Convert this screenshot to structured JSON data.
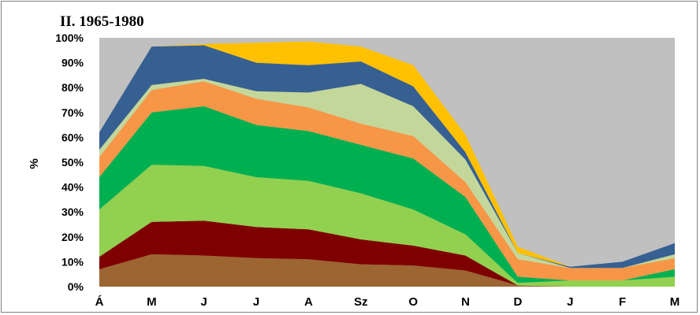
{
  "chart_data": {
    "type": "area",
    "stacked": true,
    "title": "II. 1965-1980",
    "xlabel": "",
    "ylabel": "%",
    "ylim": [
      0,
      100
    ],
    "y_tick_suffix": "%",
    "y_ticks": [
      0,
      10,
      20,
      30,
      40,
      50,
      60,
      70,
      80,
      90,
      100
    ],
    "grid": false,
    "legend": "none",
    "plot_background": "#c0c0c0",
    "categories": [
      "Á",
      "M",
      "J",
      "J",
      "A",
      "Sz",
      "O",
      "N",
      "D",
      "J",
      "F",
      "M"
    ],
    "series": [
      {
        "color": "#9c6531",
        "values": [
          7,
          13,
          12.5,
          11.5,
          11,
          9,
          8.5,
          6.5,
          0.5,
          0,
          0,
          0
        ]
      },
      {
        "color": "#7f0000",
        "values": [
          5,
          13,
          14,
          12.5,
          12,
          10,
          8,
          6,
          0,
          0,
          0,
          0
        ]
      },
      {
        "color": "#92d050",
        "values": [
          19,
          23,
          22,
          20,
          19.5,
          18.5,
          14.5,
          8.5,
          1,
          2.5,
          2.5,
          4
        ]
      },
      {
        "color": "#00b050",
        "values": [
          13,
          21,
          24,
          21,
          20,
          19.5,
          20.5,
          15,
          2.5,
          0,
          0,
          3
        ]
      },
      {
        "color": "#f79646",
        "values": [
          8,
          9,
          10,
          10.5,
          9.5,
          8.5,
          9,
          6,
          7,
          5,
          5,
          4.5
        ]
      },
      {
        "color": "#c4d79b",
        "values": [
          3,
          2,
          1,
          3,
          6,
          16,
          12,
          9,
          2.5,
          0,
          0,
          1.5
        ]
      },
      {
        "color": "#376092",
        "values": [
          7,
          15.5,
          13.5,
          11.5,
          11,
          9,
          8,
          3,
          0,
          0.5,
          2.5,
          4.5
        ]
      },
      {
        "color": "#ffc000",
        "values": [
          0,
          0,
          0.5,
          8,
          9.5,
          6,
          8.5,
          7,
          2.5,
          0,
          0,
          0
        ]
      }
    ]
  }
}
